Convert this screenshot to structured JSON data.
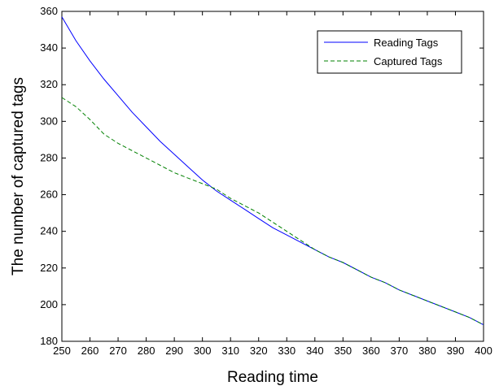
{
  "chart_data": {
    "type": "line",
    "title": "",
    "xlabel": "Reading time",
    "ylabel": "The number of captured tags",
    "xlim": [
      250,
      400
    ],
    "ylim": [
      180,
      360
    ],
    "xticks": [
      250,
      260,
      270,
      280,
      290,
      300,
      310,
      320,
      330,
      340,
      350,
      360,
      370,
      380,
      390,
      400
    ],
    "yticks": [
      180,
      200,
      220,
      240,
      260,
      280,
      300,
      320,
      340,
      360
    ],
    "grid": false,
    "legend": "top-right",
    "series": [
      {
        "name": "Reading Tags",
        "color": "#0000ff",
        "style": "solid",
        "x": [
          250,
          255,
          260,
          265,
          270,
          275,
          280,
          285,
          290,
          295,
          300,
          305,
          310,
          315,
          320,
          325,
          330,
          335,
          340,
          345,
          350,
          355,
          360,
          365,
          370,
          375,
          380,
          385,
          390,
          395,
          400
        ],
        "y": [
          357,
          344,
          333,
          323,
          314,
          305,
          297,
          289,
          282,
          275,
          268,
          262,
          257,
          252,
          247,
          242,
          238,
          234,
          230,
          226,
          223,
          219,
          215,
          212,
          208,
          205,
          202,
          199,
          196,
          193,
          189
        ]
      },
      {
        "name": "Captured Tags",
        "color": "#008000",
        "style": "dashed",
        "x": [
          250,
          255,
          260,
          265,
          270,
          275,
          280,
          285,
          290,
          295,
          300,
          305,
          310,
          315,
          320,
          325,
          330,
          335,
          340,
          345,
          350,
          355,
          360,
          365,
          370,
          375,
          380,
          385,
          390,
          395,
          400
        ],
        "y": [
          313,
          308,
          301,
          293,
          288,
          284,
          280,
          276,
          272,
          269,
          266,
          263,
          258,
          254,
          250,
          245,
          240,
          235,
          230,
          226,
          223,
          219,
          215,
          212,
          208,
          205,
          202,
          199,
          196,
          193,
          189
        ]
      }
    ]
  }
}
